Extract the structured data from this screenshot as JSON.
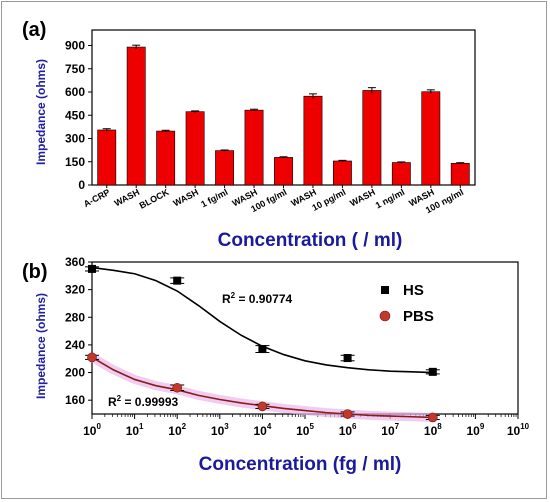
{
  "chart_data": [
    {
      "panel_label": "(a)",
      "type": "bar",
      "ylabel": "Impedance (ohms)",
      "xlabel": "Concentration  ( / ml)",
      "ylim": [
        0,
        1000
      ],
      "yticks": [
        0,
        150,
        300,
        450,
        600,
        750,
        900
      ],
      "categories": [
        "A-CRP",
        "WASH",
        "BLOCK",
        "WASH",
        "1 fg/ml",
        "WASH",
        "100 fg/ml",
        "WASH",
        "10 pg/ml",
        "WASH",
        "1 ng/ml",
        "WASH",
        "100 ng/ml"
      ],
      "values": [
        355,
        890,
        348,
        473,
        222,
        483,
        178,
        573,
        155,
        610,
        145,
        602,
        140
      ],
      "errors": [
        8,
        12,
        5,
        5,
        4,
        6,
        4,
        15,
        4,
        18,
        4,
        12,
        4
      ],
      "bar_color": "#ee0000"
    },
    {
      "panel_label": "(b)",
      "type": "scatter",
      "ylabel": "Impedance (ohms)",
      "xlabel": "Concentration (fg / ml)",
      "x_scale": "log",
      "xlim": [
        1,
        10000000000
      ],
      "xticks": [
        {
          "value": 1,
          "base": "10",
          "exp": "0"
        },
        {
          "value": 10,
          "base": "10",
          "exp": "1"
        },
        {
          "value": 100,
          "base": "10",
          "exp": "2"
        },
        {
          "value": 1000,
          "base": "10",
          "exp": "3"
        },
        {
          "value": 10000,
          "base": "10",
          "exp": "4"
        },
        {
          "value": 100000,
          "base": "10",
          "exp": "5"
        },
        {
          "value": 1000000,
          "base": "10",
          "exp": "6"
        },
        {
          "value": 10000000,
          "base": "10",
          "exp": "7"
        },
        {
          "value": 100000000,
          "base": "10",
          "exp": "8"
        },
        {
          "value": 1000000000,
          "base": "10",
          "exp": "9"
        },
        {
          "value": 10000000000,
          "base": "10",
          "exp": "10"
        }
      ],
      "ylim": [
        140,
        360
      ],
      "yticks": [
        160,
        200,
        240,
        280,
        320,
        360
      ],
      "series": [
        {
          "name": "HS",
          "marker": "square",
          "color": "#000000",
          "fit_color": "#000000",
          "x": [
            1,
            100,
            10000,
            1000000,
            100000000
          ],
          "y": [
            350,
            333,
            234,
            221,
            201
          ],
          "errors": [
            3,
            4,
            5,
            4,
            3
          ],
          "fit_logx": [
            0,
            0.5,
            1,
            1.5,
            2,
            2.5,
            3,
            3.5,
            4,
            4.5,
            5,
            5.5,
            6,
            6.5,
            7,
            7.5,
            8
          ],
          "fit_y": [
            352,
            348,
            343,
            333,
            318,
            297,
            274,
            254,
            238,
            226,
            217,
            211,
            207,
            204,
            202,
            201,
            200
          ],
          "r2_label": "R",
          "r2_exp": "2",
          "r2_value": " = 0.90774"
        },
        {
          "name": "PBS",
          "marker": "circle",
          "color": "#c0392b",
          "fit_color": "#8b1a1a",
          "x": [
            1,
            100,
            10000,
            1000000,
            100000000
          ],
          "y": [
            222,
            178,
            151,
            140,
            135
          ],
          "errors": [
            3,
            4,
            3,
            3,
            3
          ],
          "fit_logx": [
            0,
            0.5,
            1,
            1.5,
            2,
            2.5,
            3,
            3.5,
            4,
            4.5,
            5,
            5.5,
            6,
            6.5,
            7,
            7.5,
            8
          ],
          "fit_y": [
            222,
            204,
            190,
            181,
            175,
            167,
            161,
            156,
            152,
            148,
            145,
            142,
            140,
            138,
            137,
            136,
            135
          ],
          "r2_label": "R",
          "r2_exp": "2",
          "r2_value": " = 0.99993"
        }
      ],
      "legend_position": "top-right"
    }
  ]
}
